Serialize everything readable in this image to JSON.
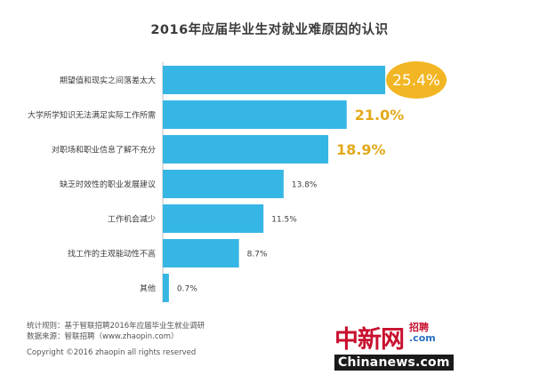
{
  "chart_data": {
    "type": "bar",
    "orientation": "horizontal",
    "title": "2016年应届毕业生对就业难原因的认识",
    "categories": [
      "期望值和现实之间落差太大",
      "大学所学知识无法满足实际工作所需",
      "对职场和职业信息了解不充分",
      "缺乏时效性的职业发展建议",
      "工作机会减少",
      "找工作的主观能动性不高",
      "其他"
    ],
    "values": [
      25.4,
      21.0,
      18.9,
      13.8,
      11.5,
      8.7,
      0.7
    ],
    "value_labels": [
      "25.4%",
      "21.0%",
      "18.9%",
      "13.8%",
      "11.5%",
      "8.7%",
      "0.7%"
    ],
    "xlim": [
      0,
      26
    ],
    "grid": false,
    "legend": "none",
    "colors": {
      "bar": "#36b6e4",
      "highlight_circle": "#f2b624",
      "highlight_text": "#e3a91a",
      "label_text": "#3d3d3d",
      "axis": "#bfbfbf"
    }
  },
  "footer": {
    "stats_rule": "统计规则：基于智联招聘2016年应届毕业生就业调研",
    "data_source": "数据来源：智联招聘（www.zhaopin.com）",
    "copyright": "Copyright ©2016 zhaopin all rights reserved"
  },
  "watermark": {
    "main": "中新网",
    "side_top": "招聘",
    "side_bottom": ".com",
    "bottom": "Chinanews.com"
  }
}
